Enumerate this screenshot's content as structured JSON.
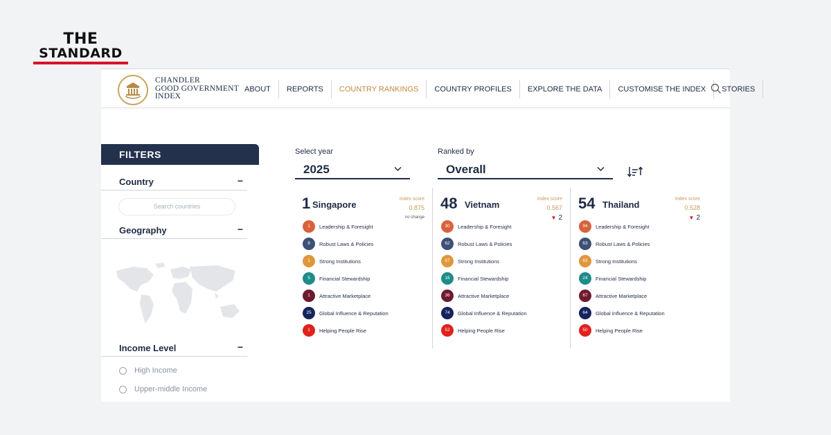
{
  "brand": {
    "line1": "THE",
    "line2": "STANDARD"
  },
  "site": {
    "logo_lines": [
      "CHANDLER",
      "GOOD GOVERNMENT",
      "INDEX"
    ],
    "nav": [
      {
        "label": "ABOUT",
        "active": false
      },
      {
        "label": "REPORTS",
        "active": false
      },
      {
        "label": "COUNTRY RANKINGS",
        "active": true
      },
      {
        "label": "COUNTRY PROFILES",
        "active": false
      },
      {
        "label": "EXPLORE THE DATA",
        "active": false
      },
      {
        "label": "CUSTOMISE THE INDEX",
        "active": false
      },
      {
        "label": "STORIES",
        "active": false
      }
    ]
  },
  "filters": {
    "title": "FILTERS",
    "country_label": "Country",
    "search_placeholder": "Search countries",
    "geography_label": "Geography",
    "income_label": "Income Level",
    "income_options": [
      "High Income",
      "Upper-middle Income"
    ]
  },
  "selectors": {
    "year_label": "Select year",
    "year_value": "2025",
    "rank_label": "Ranked by",
    "rank_value": "Overall"
  },
  "colors": {
    "accent": "#c28a3e",
    "navy": "#23314d",
    "pillars": [
      "#d8623c",
      "#3d5075",
      "#e0963b",
      "#1e8c8a",
      "#6e1a2f",
      "#17235c",
      "#e0211d"
    ]
  },
  "pillar_names": [
    "Leadership & Foresight",
    "Robust Laws & Policies",
    "Strong Institutions",
    "Financial Stewardship",
    "Attractive Marketplace",
    "Global Influence & Reputation",
    "Helping People Rise"
  ],
  "countries": [
    {
      "rank": "1",
      "name": "Singapore",
      "index_label": "Index score",
      "score": "0.875",
      "change": "no change",
      "change_dir": "none",
      "pillars": [
        "1",
        "9",
        "1",
        "5",
        "1",
        "25",
        "1"
      ]
    },
    {
      "rank": "48",
      "name": "Vietnam",
      "index_label": "Index score",
      "score": "0.567",
      "change": "2",
      "change_dir": "down",
      "pillars": [
        "30",
        "62",
        "67",
        "16",
        "36",
        "74",
        "52"
      ]
    },
    {
      "rank": "54",
      "name": "Thailand",
      "index_label": "Index score",
      "score": "0.528",
      "change": "2",
      "change_dir": "down",
      "pillars": [
        "94",
        "63",
        "63",
        "24",
        "67",
        "64",
        "50"
      ]
    }
  ]
}
